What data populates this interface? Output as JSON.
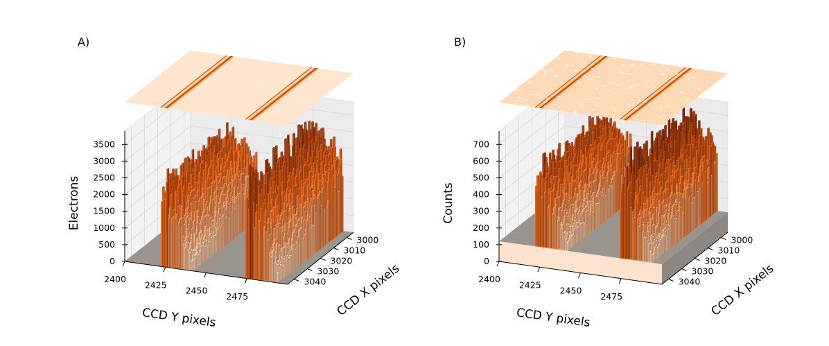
{
  "chart_data": [
    {
      "type": "bar3d",
      "panel_label": "A)",
      "zlabel": "Electrons",
      "xlabel": "CCD Y pixels",
      "ylabel": "CCD X pixels",
      "x_ticks": [
        "2400",
        "2425",
        "2450",
        "2475"
      ],
      "y_ticks": [
        "3000",
        "3010",
        "3020",
        "3030",
        "3040"
      ],
      "z_ticks": [
        "0",
        "500",
        "1000",
        "1500",
        "2000",
        "2500",
        "3000",
        "3500"
      ],
      "xlim": [
        2400,
        2500
      ],
      "ylim": [
        2995,
        3045
      ],
      "zlim": [
        0,
        3900
      ],
      "baseline": 0,
      "profile": {
        "columns": [
          {
            "start": 2422,
            "end": 2424,
            "peak": 2450,
            "edge": "spike"
          },
          {
            "start": 2424,
            "end": 2442,
            "peak": 2500,
            "edge": "ridge"
          },
          {
            "start": 2474,
            "end": 2476,
            "peak": 2600,
            "edge": "spike"
          },
          {
            "start": 2476,
            "end": 2494,
            "peak": 3000,
            "edge": "ridge"
          }
        ],
        "max_value": 3850
      },
      "colors": {
        "floor": "#9a948f",
        "high": "#7f2704",
        "mid": "#e8651a",
        "low": "#fde4cc",
        "contour_base": "#fee6ce"
      }
    },
    {
      "type": "bar3d",
      "panel_label": "B)",
      "zlabel": "Counts",
      "xlabel": "CCD Y pixels",
      "ylabel": "CCD X pixels",
      "x_ticks": [
        "2400",
        "2425",
        "2450",
        "2475"
      ],
      "y_ticks": [
        "3000",
        "3010",
        "3020",
        "3030",
        "3040"
      ],
      "z_ticks": [
        "0",
        "100",
        "200",
        "300",
        "400",
        "500",
        "600",
        "700"
      ],
      "xlim": [
        2400,
        2500
      ],
      "ylim": [
        2995,
        3045
      ],
      "zlim": [
        0,
        780
      ],
      "baseline": 120,
      "profile": {
        "columns": [
          {
            "start": 2422,
            "end": 2424,
            "peak": 560,
            "edge": "spike"
          },
          {
            "start": 2424,
            "end": 2442,
            "peak": 600,
            "edge": "ridge"
          },
          {
            "start": 2474,
            "end": 2476,
            "peak": 620,
            "edge": "spike"
          },
          {
            "start": 2476,
            "end": 2494,
            "peak": 680,
            "edge": "ridge"
          }
        ],
        "max_value": 770
      },
      "colors": {
        "floor": "#9a948f",
        "high": "#7f2704",
        "mid": "#e8651a",
        "low": "#fde4cc",
        "contour_base": "#fdd9b5"
      }
    }
  ]
}
